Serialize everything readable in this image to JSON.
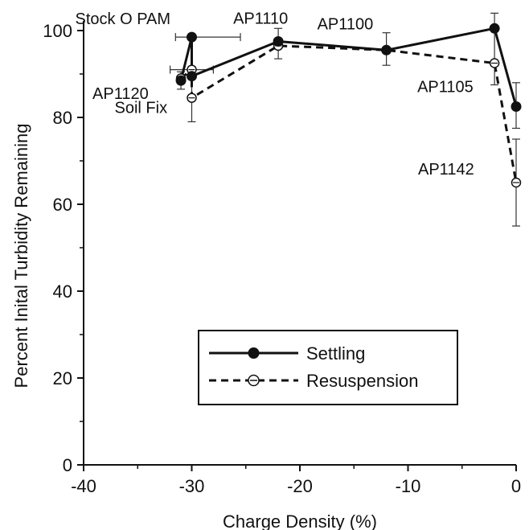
{
  "chart_data": {
    "type": "line",
    "title": "",
    "xlabel": "Charge Density (%)",
    "ylabel": "Percent Inital Turbidity Remaining",
    "xlim": [
      -40,
      0
    ],
    "ylim": [
      0,
      100
    ],
    "xticks": [
      -40,
      -30,
      -20,
      -10,
      0
    ],
    "yticks": [
      0,
      20,
      40,
      60,
      80,
      100
    ],
    "grid": false,
    "legend_position": "lower-center",
    "series": [
      {
        "name": "Settling",
        "style": "solid",
        "marker": "filled-circle",
        "points": [
          {
            "x": -31,
            "y": 88.5
          },
          {
            "x": -30,
            "y": 98.5
          },
          {
            "x": -30,
            "y": 89.5
          },
          {
            "x": -22,
            "y": 97.5
          },
          {
            "x": -12,
            "y": 95.5
          },
          {
            "x": -2,
            "y": 100.5
          },
          {
            "x": 0,
            "y": 82.5
          }
        ]
      },
      {
        "name": "Resuspension",
        "style": "dashed",
        "marker": "open-circle",
        "points": [
          {
            "x": -31,
            "y": 89
          },
          {
            "x": -30,
            "y": 91
          },
          {
            "x": -30,
            "y": 84.5
          },
          {
            "x": -22,
            "y": 96.5
          },
          {
            "x": -12,
            "y": 95.5
          },
          {
            "x": -2,
            "y": 92.5
          },
          {
            "x": 0,
            "y": 65
          }
        ]
      }
    ],
    "error_bars": [
      {
        "x": -31,
        "y": 88.5,
        "ylow": 86.5,
        "yhigh": 90.5
      },
      {
        "x": -30,
        "y": 91,
        "xlow": -32,
        "xhigh": -28
      },
      {
        "x": -30,
        "y": 98.5,
        "xlow": -31.5,
        "xhigh": -25.5
      },
      {
        "x": -30,
        "y": 84.5,
        "ylow": 79,
        "yhigh": 90
      },
      {
        "x": -22,
        "y": 97,
        "ylow": 93.5,
        "yhigh": 100.5
      },
      {
        "x": -12,
        "y": 95.5,
        "ylow": 92,
        "yhigh": 99.5
      },
      {
        "x": -2,
        "y": 96,
        "ylow": 87.5,
        "yhigh": 104
      },
      {
        "x": 0,
        "y": 82.5,
        "ylow": 77.5,
        "yhigh": 88
      },
      {
        "x": 0,
        "y": 65,
        "ylow": 55,
        "yhigh": 75
      }
    ],
    "annotations": [
      {
        "text": "Stock O PAM",
        "x": -30,
        "y": 98.5
      },
      {
        "text": "AP1110",
        "x": -22,
        "y": 97.5
      },
      {
        "text": "AP1100",
        "x": -12,
        "y": 95.5
      },
      {
        "text": "AP1120",
        "x": -31,
        "y": 88.5
      },
      {
        "text": "Soil Fix",
        "x": -30,
        "y": 84.5
      },
      {
        "text": "AP1105",
        "x": -2,
        "y": 92.5
      },
      {
        "text": "AP1142",
        "x": 0,
        "y": 65
      }
    ]
  }
}
